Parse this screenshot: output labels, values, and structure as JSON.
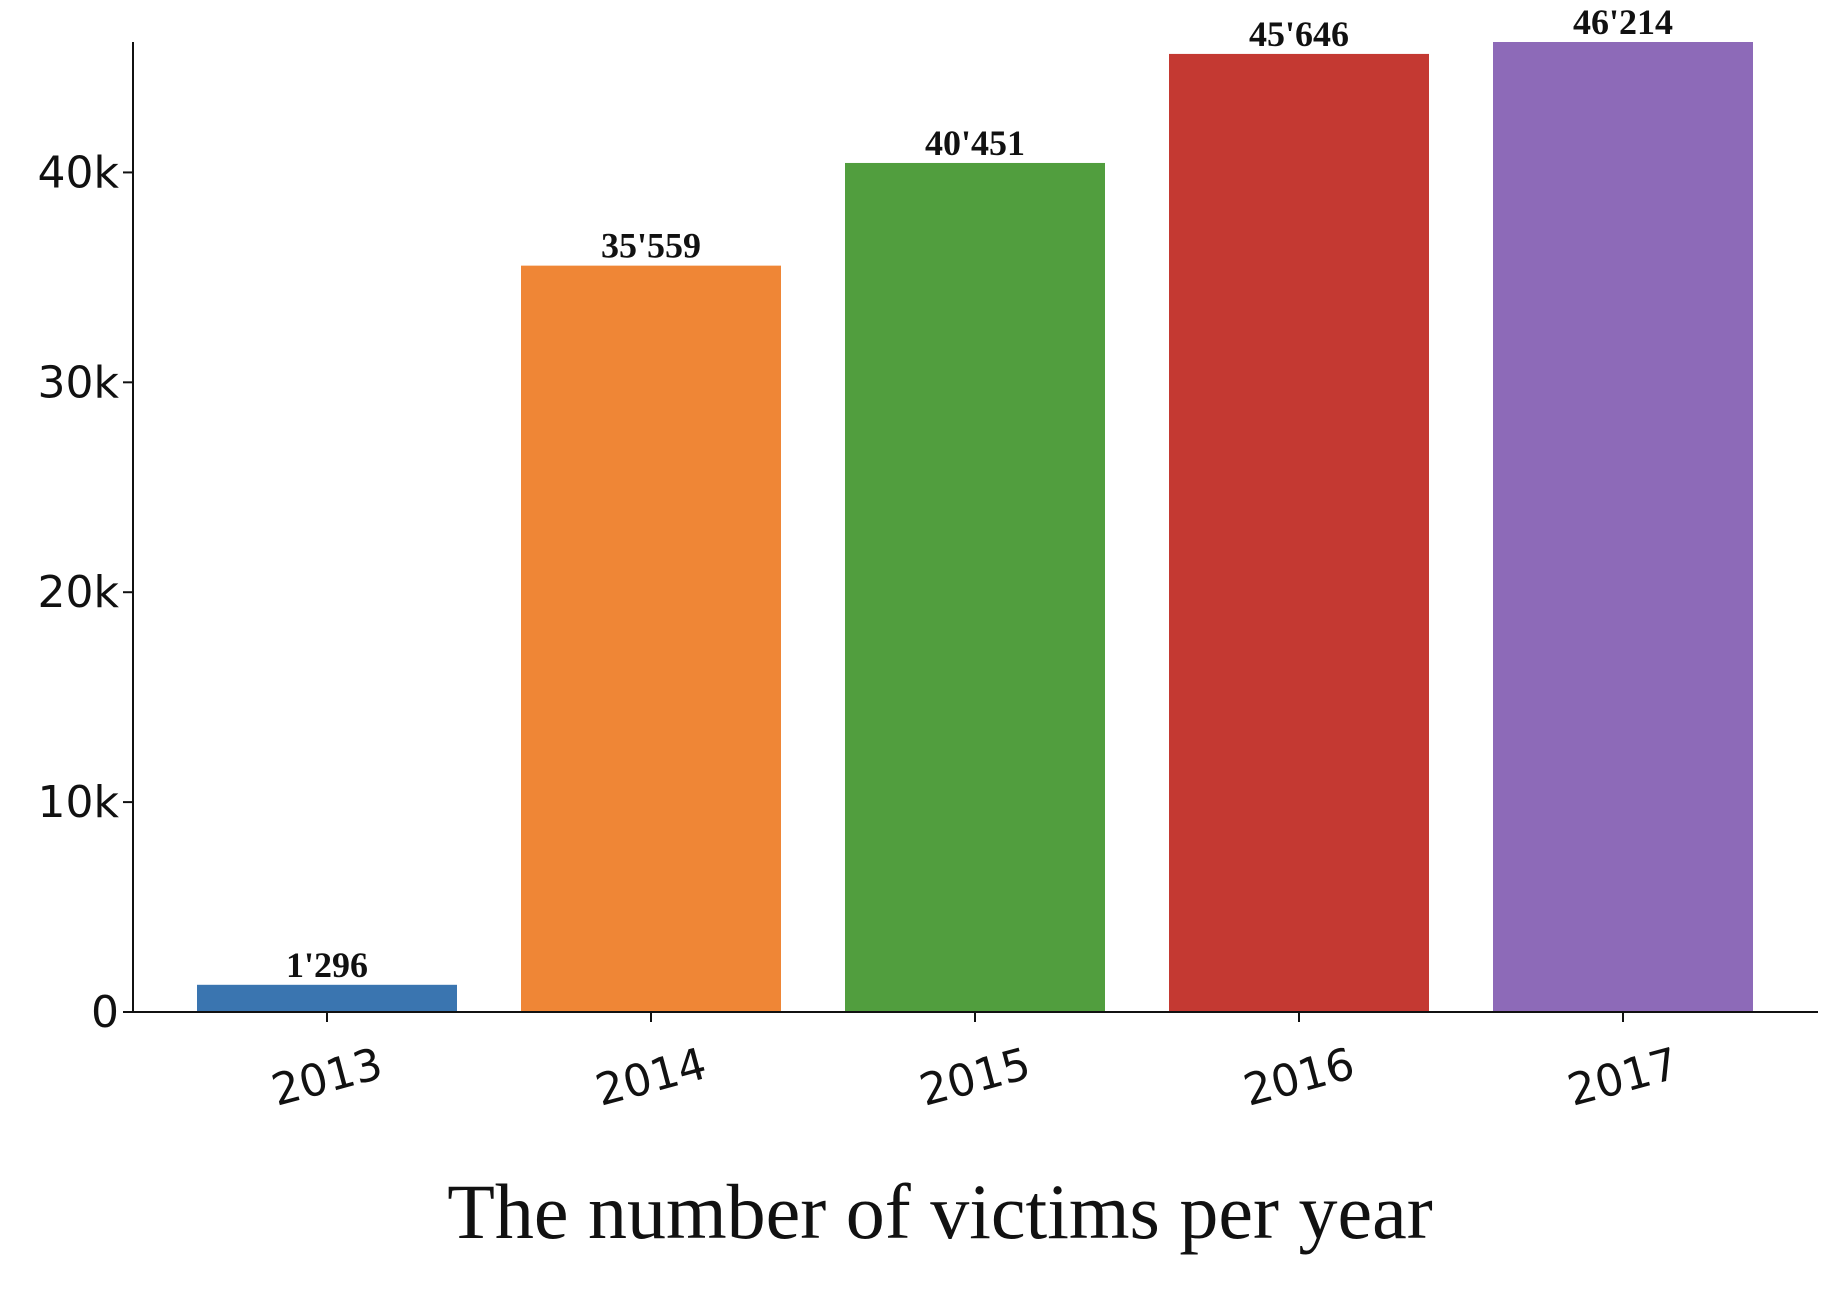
{
  "chart_data": {
    "type": "bar",
    "categories": [
      "2013",
      "2014",
      "2015",
      "2016",
      "2017"
    ],
    "values": [
      1296,
      35559,
      40451,
      45646,
      46214
    ],
    "data_labels": [
      "1'296",
      "35'559",
      "40'451",
      "45'646",
      "46'214"
    ],
    "colors": [
      "#3A75B0",
      "#EF8636",
      "#519E3E",
      "#C43932",
      "#8D6AB8"
    ],
    "title": "The number of victims per year",
    "xlabel": "",
    "ylabel": "",
    "ylim": [
      0,
      46214
    ],
    "yticks": [
      0,
      10000,
      20000,
      30000,
      40000
    ],
    "ytick_labels": [
      "0",
      "10k",
      "20k",
      "30k",
      "40k"
    ],
    "xtick_rotation_deg": -15,
    "grid": false,
    "legend": "none"
  }
}
